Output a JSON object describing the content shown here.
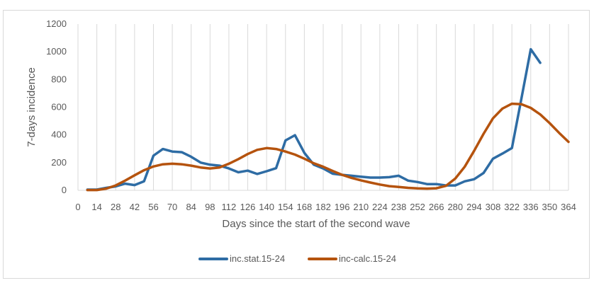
{
  "chart_data": {
    "type": "line",
    "title": "",
    "xlabel": "Days since the start of the second wave",
    "ylabel": "7-days incidence",
    "ylim": [
      0,
      1200
    ],
    "yticks": [
      0,
      200,
      400,
      600,
      800,
      1000,
      1200
    ],
    "xlim": [
      0,
      364
    ],
    "xticks": [
      0,
      14,
      28,
      42,
      56,
      70,
      84,
      98,
      112,
      126,
      140,
      154,
      168,
      182,
      196,
      210,
      224,
      238,
      252,
      266,
      280,
      294,
      308,
      322,
      336,
      350,
      364
    ],
    "grid": "vertical",
    "legend": "bottom",
    "series": [
      {
        "name": "inc.stat.15-24",
        "color": "#2e6ca4",
        "points": [
          [
            7,
            5
          ],
          [
            14,
            5
          ],
          [
            21,
            18
          ],
          [
            28,
            28
          ],
          [
            35,
            48
          ],
          [
            42,
            38
          ],
          [
            49,
            65
          ],
          [
            56,
            250
          ],
          [
            63,
            298
          ],
          [
            70,
            280
          ],
          [
            77,
            275
          ],
          [
            84,
            242
          ],
          [
            91,
            200
          ],
          [
            98,
            185
          ],
          [
            105,
            178
          ],
          [
            112,
            158
          ],
          [
            119,
            130
          ],
          [
            126,
            142
          ],
          [
            133,
            118
          ],
          [
            140,
            138
          ],
          [
            147,
            160
          ],
          [
            154,
            360
          ],
          [
            161,
            398
          ],
          [
            168,
            270
          ],
          [
            175,
            185
          ],
          [
            182,
            158
          ],
          [
            189,
            120
          ],
          [
            196,
            112
          ],
          [
            203,
            105
          ],
          [
            210,
            98
          ],
          [
            217,
            92
          ],
          [
            224,
            92
          ],
          [
            231,
            95
          ],
          [
            238,
            105
          ],
          [
            245,
            70
          ],
          [
            252,
            60
          ],
          [
            259,
            45
          ],
          [
            266,
            45
          ],
          [
            273,
            35
          ],
          [
            280,
            35
          ],
          [
            287,
            65
          ],
          [
            294,
            80
          ],
          [
            301,
            125
          ],
          [
            308,
            228
          ],
          [
            315,
            265
          ],
          [
            322,
            305
          ],
          [
            329,
            660
          ],
          [
            336,
            1018
          ],
          [
            343,
            920
          ]
        ]
      },
      {
        "name": "inc-calc.15-24",
        "color": "#b5530e",
        "points": [
          [
            7,
            2
          ],
          [
            14,
            2
          ],
          [
            21,
            12
          ],
          [
            28,
            35
          ],
          [
            35,
            70
          ],
          [
            42,
            108
          ],
          [
            49,
            145
          ],
          [
            56,
            172
          ],
          [
            63,
            188
          ],
          [
            70,
            192
          ],
          [
            77,
            188
          ],
          [
            84,
            178
          ],
          [
            91,
            165
          ],
          [
            98,
            158
          ],
          [
            105,
            165
          ],
          [
            112,
            192
          ],
          [
            119,
            225
          ],
          [
            126,
            262
          ],
          [
            133,
            292
          ],
          [
            140,
            305
          ],
          [
            147,
            298
          ],
          [
            154,
            280
          ],
          [
            161,
            258
          ],
          [
            168,
            228
          ],
          [
            175,
            195
          ],
          [
            182,
            170
          ],
          [
            189,
            140
          ],
          [
            196,
            112
          ],
          [
            203,
            90
          ],
          [
            210,
            72
          ],
          [
            217,
            56
          ],
          [
            224,
            42
          ],
          [
            231,
            30
          ],
          [
            238,
            24
          ],
          [
            245,
            18
          ],
          [
            252,
            14
          ],
          [
            259,
            12
          ],
          [
            266,
            15
          ],
          [
            273,
            32
          ],
          [
            280,
            85
          ],
          [
            287,
            170
          ],
          [
            294,
            285
          ],
          [
            301,
            408
          ],
          [
            308,
            520
          ],
          [
            315,
            590
          ],
          [
            322,
            625
          ],
          [
            329,
            622
          ],
          [
            336,
            595
          ],
          [
            343,
            548
          ],
          [
            350,
            485
          ],
          [
            357,
            415
          ],
          [
            364,
            350
          ]
        ]
      }
    ]
  }
}
